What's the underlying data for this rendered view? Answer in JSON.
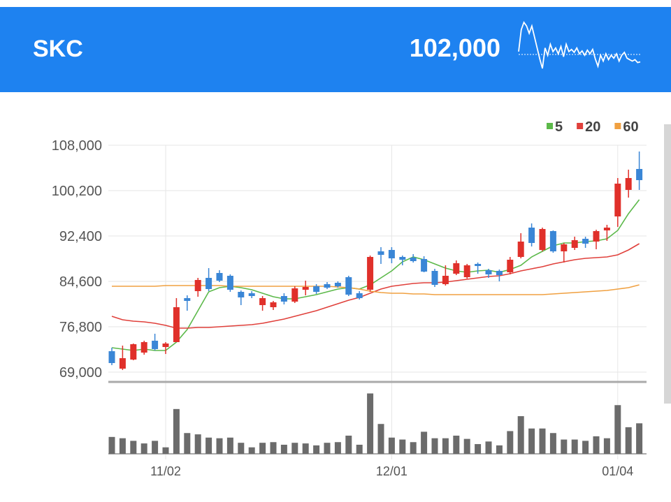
{
  "header": {
    "title": "SKC",
    "price": "102,000",
    "sparkline": [
      25,
      55,
      65,
      60,
      50,
      60,
      45,
      30,
      15,
      2,
      30,
      20,
      35,
      25,
      30,
      22,
      32,
      18,
      35,
      25,
      28,
      24,
      30,
      22,
      26,
      20,
      27,
      22,
      28,
      15,
      5,
      20,
      12,
      22,
      14,
      20,
      16,
      22,
      12,
      20,
      24,
      16,
      14,
      12,
      14,
      10,
      11
    ]
  },
  "chart_data": {
    "type": "candlestick",
    "categories": [
      null,
      null,
      null,
      null,
      null,
      "11/02",
      null,
      null,
      null,
      null,
      null,
      null,
      null,
      null,
      null,
      null,
      null,
      null,
      null,
      null,
      null,
      null,
      null,
      null,
      null,
      null,
      "12/01",
      null,
      null,
      null,
      null,
      null,
      null,
      null,
      null,
      null,
      null,
      null,
      null,
      null,
      null,
      null,
      null,
      null,
      null,
      null,
      null,
      "01/04",
      null,
      null
    ],
    "open": [
      72600,
      69600,
      71160,
      72360,
      74400,
      73320,
      74160,
      81720,
      82920,
      85200,
      86040,
      85560,
      82800,
      82560,
      80520,
      80160,
      82080,
      81120,
      83160,
      83760,
      84120,
      84360,
      85320,
      82560,
      83160,
      89760,
      90000,
      88800,
      88680,
      88440,
      86400,
      84120,
      85920,
      85320,
      87600,
      86520,
      86400,
      86160,
      88800,
      93840,
      90000,
      93240,
      89760,
      90360,
      91920,
      91440,
      93360,
      95760,
      100320,
      103920
    ],
    "high": [
      73200,
      73560,
      73920,
      74400,
      75600,
      74160,
      81720,
      82200,
      85200,
      86880,
      86520,
      85800,
      83040,
      82920,
      82080,
      81240,
      82560,
      83760,
      84720,
      84120,
      84480,
      84600,
      85560,
      82920,
      89040,
      90480,
      90480,
      89040,
      89280,
      88920,
      86760,
      87360,
      88200,
      87600,
      87840,
      86760,
      86640,
      88800,
      92880,
      94560,
      93840,
      93360,
      91200,
      92280,
      92280,
      93480,
      94320,
      102360,
      103800,
      106920
    ],
    "low": [
      70200,
      69360,
      71040,
      72000,
      72720,
      72120,
      74160,
      79560,
      81960,
      82920,
      84480,
      82800,
      80520,
      81720,
      79560,
      79680,
      80640,
      80880,
      82200,
      82440,
      83280,
      83520,
      82080,
      81480,
      82800,
      87600,
      87720,
      87360,
      87840,
      86160,
      83640,
      83880,
      85680,
      85080,
      85920,
      85200,
      84600,
      85800,
      88560,
      90600,
      89760,
      89520,
      87840,
      90000,
      90360,
      90120,
      91560,
      93960,
      99000,
      100320
    ],
    "close": [
      70560,
      71400,
      73800,
      74160,
      72960,
      73920,
      80160,
      81240,
      84840,
      83280,
      84720,
      83160,
      81840,
      82080,
      81720,
      81000,
      81120,
      83400,
      83640,
      82800,
      83520,
      83760,
      82320,
      81720,
      88800,
      89160,
      88560,
      88320,
      88080,
      86280,
      84000,
      85560,
      87720,
      87360,
      87240,
      85800,
      85680,
      88320,
      91440,
      91200,
      93600,
      89760,
      90960,
      91680,
      91080,
      93240,
      93840,
      101400,
      102360,
      102000
    ],
    "up_color": "#e0302a",
    "down_color": "#3a86d6",
    "series": [
      {
        "name": "5",
        "color": "#5cb94a",
        "values": [
          73200,
          72960,
          72720,
          72960,
          72720,
          72720,
          74160,
          76320,
          79560,
          82800,
          83520,
          83760,
          83520,
          83160,
          82560,
          81960,
          81600,
          81600,
          81960,
          82320,
          82800,
          83280,
          83520,
          83280,
          84000,
          85200,
          86400,
          87960,
          88800,
          88320,
          87600,
          86880,
          86400,
          86160,
          86400,
          86520,
          86160,
          86640,
          87360,
          88800,
          89760,
          90720,
          91200,
          91200,
          91440,
          91560,
          91920,
          93360,
          96240,
          98640
        ]
      },
      {
        "name": "20",
        "color": "#e0403b",
        "values": [
          78600,
          78000,
          77760,
          77640,
          77400,
          77040,
          76560,
          76560,
          76680,
          76680,
          76800,
          76920,
          77040,
          77160,
          77400,
          77760,
          78120,
          78600,
          79080,
          79560,
          80160,
          80760,
          81360,
          81840,
          82560,
          83280,
          83760,
          84000,
          84240,
          84360,
          84360,
          84480,
          84720,
          84960,
          85200,
          85440,
          85560,
          85920,
          86400,
          86760,
          87120,
          87600,
          87960,
          88320,
          88560,
          88680,
          88800,
          89160,
          90000,
          91080
        ]
      },
      {
        "name": "60",
        "color": "#f0a040",
        "values": [
          83760,
          83760,
          83760,
          83760,
          83760,
          83880,
          83880,
          83880,
          83880,
          83880,
          83880,
          83760,
          83760,
          83760,
          83760,
          83760,
          83760,
          83760,
          83760,
          83760,
          83760,
          83640,
          83520,
          83280,
          82920,
          82680,
          82560,
          82560,
          82440,
          82440,
          82320,
          82320,
          82320,
          82320,
          82320,
          82320,
          82320,
          82320,
          82320,
          82320,
          82320,
          82440,
          82560,
          82680,
          82800,
          82920,
          83040,
          83280,
          83520,
          84000
        ]
      }
    ],
    "ylim": [
      67320,
      108000
    ],
    "yticks": [
      {
        "value": 108000,
        "label": "108,000"
      },
      {
        "value": 100200,
        "label": "100,200"
      },
      {
        "value": 92400,
        "label": "92,400"
      },
      {
        "value": 84600,
        "label": "84,600"
      },
      {
        "value": 76800,
        "label": "76,800"
      },
      {
        "value": 69000,
        "label": "69,000"
      }
    ],
    "grid": true,
    "volume": {
      "color": "#6b6b6b",
      "ylim": [
        0,
        100
      ],
      "values": [
        26,
        24,
        20,
        16,
        20,
        10,
        69,
        32,
        30,
        25,
        24,
        25,
        17,
        10,
        17,
        18,
        14,
        17,
        16,
        13,
        17,
        18,
        28,
        14,
        93,
        46,
        25,
        22,
        18,
        34,
        24,
        24,
        28,
        23,
        15,
        19,
        13,
        35,
        58,
        39,
        39,
        32,
        22,
        22,
        20,
        27,
        24,
        75,
        41,
        47
      ]
    }
  }
}
